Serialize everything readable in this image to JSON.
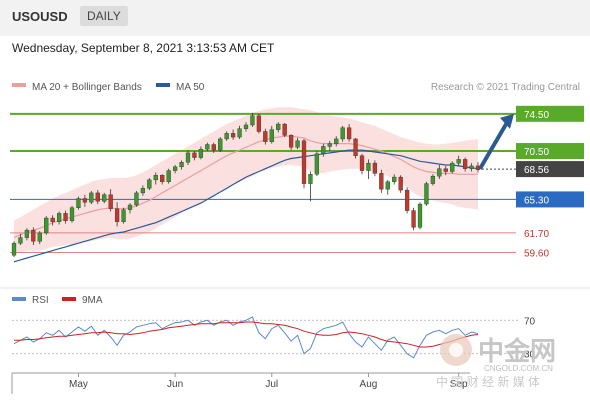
{
  "symbol": "USOUSD",
  "timeframe": "DAILY",
  "datetime": "Wednesday, September 8, 2021 3:13:53 AM CET",
  "credit": "Research © 2021 Trading Central",
  "legend": {
    "ma20_label": "MA 20 + Bollinger Bands",
    "ma50_label": "MA 50",
    "rsi_label": "RSI",
    "rsi_ma_label": "9MA"
  },
  "colors": {
    "candle_up": "#3b9a2b",
    "candle_down": "#c0392b",
    "ma20": "#e8a0a0",
    "bollinger_fill": "#f9d6d6",
    "ma50": "#2a5a9a",
    "resistance": "#5aaa2a",
    "support_blue": "#2a6ac0",
    "support_red": "#e08080",
    "current_price": "#444444",
    "arrow": "#2a5a90",
    "rsi": "#5a8ad0",
    "rsi_ma": "#cc2222"
  },
  "watermark": {
    "brand": "中金网",
    "domain": "CNGOLD.COM.CN",
    "sub": "中 国 财 经 新 媒 体"
  },
  "chart_data": [
    {
      "type": "candlestick",
      "title": "USOUSD",
      "xlabel": "",
      "ylabel": "",
      "ylim": [
        57.5,
        76.2
      ],
      "x_ticks": [
        "May",
        "Jun",
        "Jul",
        "Aug",
        "Sep"
      ],
      "grid": false,
      "levels": [
        {
          "value": 74.5,
          "label": "74.50",
          "kind": "resistance"
        },
        {
          "value": 70.5,
          "label": "70.50",
          "kind": "resistance"
        },
        {
          "value": 68.56,
          "label": "68.56",
          "kind": "current"
        },
        {
          "value": 65.3,
          "label": "65.30",
          "kind": "support"
        },
        {
          "value": 61.7,
          "label": "61.70",
          "kind": "support-minor"
        },
        {
          "value": 59.6,
          "label": "59.60",
          "kind": "support-minor"
        }
      ],
      "projection": {
        "from": 68.6,
        "to": 74.5
      },
      "candles": [
        [
          59.3,
          60.8,
          59.1,
          60.6
        ],
        [
          60.6,
          61.6,
          60.4,
          61.2
        ],
        [
          61.2,
          62.2,
          60.9,
          62.0
        ],
        [
          62.0,
          62.3,
          60.4,
          60.8
        ],
        [
          60.8,
          61.9,
          60.5,
          61.7
        ],
        [
          61.7,
          63.5,
          61.5,
          63.3
        ],
        [
          63.3,
          63.6,
          62.5,
          62.9
        ],
        [
          62.9,
          64.0,
          62.6,
          63.8
        ],
        [
          63.8,
          64.1,
          62.7,
          63.0
        ],
        [
          63.0,
          64.6,
          62.8,
          64.4
        ],
        [
          64.4,
          65.6,
          64.2,
          65.4
        ],
        [
          65.4,
          65.8,
          64.5,
          65.0
        ],
        [
          65.0,
          66.2,
          64.8,
          66.0
        ],
        [
          66.0,
          66.3,
          64.8,
          65.1
        ],
        [
          65.1,
          66.0,
          64.9,
          65.8
        ],
        [
          65.8,
          66.4,
          64.0,
          64.3
        ],
        [
          64.3,
          65.0,
          62.4,
          62.9
        ],
        [
          62.9,
          64.4,
          62.7,
          64.2
        ],
        [
          64.2,
          64.9,
          63.8,
          64.7
        ],
        [
          64.7,
          66.2,
          64.5,
          66.0
        ],
        [
          66.0,
          66.8,
          65.7,
          66.5
        ],
        [
          66.5,
          67.6,
          66.3,
          67.4
        ],
        [
          67.4,
          68.2,
          66.9,
          67.9
        ],
        [
          67.9,
          68.0,
          66.9,
          67.2
        ],
        [
          67.2,
          68.6,
          67.0,
          68.4
        ],
        [
          68.4,
          69.0,
          68.1,
          68.8
        ],
        [
          68.8,
          69.5,
          68.5,
          69.3
        ],
        [
          69.3,
          70.6,
          69.0,
          70.3
        ],
        [
          70.3,
          70.5,
          69.5,
          69.8
        ],
        [
          69.8,
          71.0,
          69.6,
          70.7
        ],
        [
          70.7,
          71.4,
          70.5,
          71.2
        ],
        [
          71.2,
          71.4,
          70.3,
          70.6
        ],
        [
          70.6,
          72.0,
          70.4,
          71.8
        ],
        [
          71.8,
          72.6,
          71.6,
          72.4
        ],
        [
          72.4,
          72.8,
          71.7,
          72.0
        ],
        [
          72.0,
          73.2,
          71.8,
          72.9
        ],
        [
          72.9,
          73.6,
          72.6,
          73.3
        ],
        [
          73.3,
          74.6,
          73.1,
          74.3
        ],
        [
          74.3,
          74.5,
          72.4,
          72.6
        ],
        [
          72.6,
          72.9,
          71.2,
          71.5
        ],
        [
          71.5,
          73.2,
          71.3,
          72.8
        ],
        [
          72.8,
          73.6,
          72.5,
          73.4
        ],
        [
          73.4,
          73.5,
          72.0,
          72.2
        ],
        [
          72.2,
          72.3,
          70.6,
          70.9
        ],
        [
          70.9,
          71.9,
          70.7,
          71.6
        ],
        [
          71.6,
          71.8,
          66.5,
          67.0
        ],
        [
          67.0,
          68.3,
          65.1,
          68.0
        ],
        [
          68.0,
          70.5,
          67.8,
          70.2
        ],
        [
          70.2,
          71.3,
          69.9,
          71.0
        ],
        [
          71.0,
          71.6,
          70.5,
          71.3
        ],
        [
          71.3,
          72.1,
          71.0,
          71.8
        ],
        [
          71.8,
          73.2,
          71.5,
          73.0
        ],
        [
          73.0,
          73.4,
          71.5,
          71.8
        ],
        [
          71.8,
          71.9,
          69.7,
          70.0
        ],
        [
          70.0,
          70.2,
          68.0,
          68.4
        ],
        [
          68.4,
          69.6,
          67.5,
          69.2
        ],
        [
          69.2,
          69.5,
          67.8,
          68.1
        ],
        [
          68.1,
          68.5,
          66.0,
          66.4
        ],
        [
          66.4,
          67.4,
          65.8,
          67.2
        ],
        [
          67.2,
          68.0,
          66.9,
          67.7
        ],
        [
          67.7,
          67.9,
          66.0,
          66.3
        ],
        [
          66.3,
          66.6,
          63.8,
          64.1
        ],
        [
          64.1,
          64.4,
          62.0,
          62.3
        ],
        [
          62.3,
          65.0,
          62.1,
          64.8
        ],
        [
          64.8,
          67.2,
          64.6,
          67.0
        ],
        [
          67.0,
          68.0,
          66.8,
          67.8
        ],
        [
          67.8,
          69.0,
          67.5,
          68.6
        ],
        [
          68.6,
          68.9,
          67.9,
          68.3
        ],
        [
          68.3,
          69.4,
          68.1,
          69.2
        ],
        [
          69.2,
          70.0,
          68.9,
          69.6
        ],
        [
          69.6,
          69.8,
          68.3,
          68.6
        ],
        [
          68.6,
          69.2,
          68.3,
          68.9
        ],
        [
          68.9,
          69.3,
          68.2,
          68.5
        ]
      ],
      "ma20": [
        61.2,
        61.5,
        61.8,
        62.0,
        62.2,
        62.5,
        62.8,
        63.0,
        63.2,
        63.4,
        63.6,
        63.8,
        64.0,
        64.2,
        64.3,
        64.4,
        64.3,
        64.3,
        64.4,
        64.6,
        64.9,
        65.2,
        65.6,
        66.0,
        66.4,
        66.8,
        67.2,
        67.6,
        68.0,
        68.4,
        68.8,
        69.2,
        69.6,
        70.0,
        70.3,
        70.6,
        70.9,
        71.2,
        71.5,
        71.7,
        71.9,
        72.0,
        72.1,
        72.1,
        72.0,
        71.9,
        71.6,
        71.4,
        71.3,
        71.3,
        71.3,
        71.3,
        71.3,
        71.2,
        71.1,
        70.9,
        70.7,
        70.5,
        70.2,
        69.9,
        69.6,
        69.2,
        68.8,
        68.5,
        68.3,
        68.2,
        68.1,
        68.1,
        68.1,
        68.0,
        68.0,
        68.0,
        68.0
      ],
      "ma50": [
        58.6,
        58.8,
        59.0,
        59.2,
        59.4,
        59.6,
        59.8,
        60.0,
        60.2,
        60.4,
        60.6,
        60.8,
        61.0,
        61.2,
        61.4,
        61.6,
        61.7,
        61.8,
        62.0,
        62.2,
        62.4,
        62.6,
        62.8,
        63.1,
        63.4,
        63.7,
        64.0,
        64.3,
        64.6,
        64.9,
        65.3,
        65.7,
        66.1,
        66.5,
        66.9,
        67.3,
        67.7,
        68.0,
        68.3,
        68.6,
        68.9,
        69.2,
        69.5,
        69.7,
        69.8,
        69.9,
        70.0,
        70.1,
        70.2,
        70.3,
        70.4,
        70.5,
        70.6,
        70.6,
        70.6,
        70.5,
        70.4,
        70.3,
        70.2,
        70.1,
        70.0,
        69.8,
        69.6,
        69.4,
        69.3,
        69.2,
        69.1,
        69.0,
        69.0,
        68.9,
        68.8,
        68.7,
        68.6
      ],
      "bb_upper": [
        63.0,
        63.4,
        63.8,
        64.2,
        64.6,
        65.0,
        65.4,
        65.7,
        66.0,
        66.3,
        66.6,
        66.9,
        67.2,
        67.4,
        67.5,
        67.6,
        67.6,
        67.6,
        67.7,
        67.9,
        68.2,
        68.6,
        69.0,
        69.4,
        69.8,
        70.2,
        70.6,
        71.0,
        71.4,
        71.8,
        72.2,
        72.6,
        73.0,
        73.4,
        73.7,
        74.0,
        74.3,
        74.6,
        74.8,
        75.0,
        75.1,
        75.2,
        75.2,
        75.2,
        75.1,
        75.0,
        74.9,
        74.7,
        74.5,
        74.3,
        74.2,
        74.1,
        74.0,
        73.8,
        73.6,
        73.4,
        73.2,
        72.9,
        72.6,
        72.3,
        72.0,
        71.8,
        71.6,
        71.4,
        71.3,
        71.2,
        71.2,
        71.3,
        71.4,
        71.5,
        71.6,
        71.7,
        71.8
      ],
      "bb_lower": [
        59.4,
        59.6,
        59.8,
        59.8,
        59.8,
        60.0,
        60.2,
        60.3,
        60.4,
        60.5,
        60.6,
        60.7,
        60.8,
        61.0,
        61.1,
        61.2,
        61.0,
        61.0,
        61.1,
        61.3,
        61.6,
        61.8,
        62.2,
        62.6,
        63.0,
        63.4,
        63.8,
        64.2,
        64.6,
        65.0,
        65.4,
        65.8,
        66.2,
        66.6,
        66.9,
        67.2,
        67.5,
        67.8,
        68.2,
        68.4,
        68.7,
        68.8,
        69.0,
        69.0,
        68.9,
        68.8,
        68.3,
        68.1,
        68.1,
        68.3,
        68.4,
        68.5,
        68.6,
        68.6,
        68.6,
        68.4,
        68.2,
        68.1,
        67.8,
        67.5,
        67.2,
        66.6,
        66.0,
        65.6,
        65.3,
        65.2,
        65.0,
        64.9,
        64.8,
        64.5,
        64.4,
        64.3,
        64.2
      ]
    },
    {
      "type": "line",
      "title": "",
      "xlabel": "",
      "ylabel": "",
      "ylim": [
        20,
        80
      ],
      "y_ticks": [
        70,
        30
      ],
      "series": [
        {
          "name": "RSI",
          "values": [
            42,
            46,
            50,
            44,
            48,
            55,
            52,
            58,
            50,
            56,
            62,
            57,
            63,
            52,
            58,
            50,
            40,
            52,
            56,
            62,
            64,
            66,
            67,
            60,
            64,
            67,
            68,
            70,
            64,
            68,
            70,
            64,
            68,
            70,
            64,
            68,
            70,
            74,
            55,
            48,
            60,
            64,
            55,
            45,
            52,
            30,
            36,
            55,
            60,
            62,
            64,
            68,
            54,
            44,
            38,
            50,
            42,
            34,
            46,
            50,
            40,
            30,
            25,
            40,
            52,
            56,
            58,
            54,
            58,
            60,
            52,
            56,
            54
          ]
        },
        {
          "name": "9MA",
          "values": [
            46,
            46,
            47,
            47,
            48,
            49,
            50,
            51,
            51,
            52,
            53,
            54,
            55,
            55,
            56,
            55,
            54,
            54,
            53,
            54,
            55,
            57,
            58,
            59,
            61,
            62,
            63,
            64,
            65,
            66,
            66,
            66,
            67,
            67,
            67,
            67,
            68,
            68,
            67,
            66,
            66,
            65,
            64,
            62,
            60,
            57,
            55,
            53,
            52,
            52,
            53,
            55,
            56,
            55,
            54,
            52,
            50,
            47,
            45,
            44,
            43,
            42,
            40,
            38,
            38,
            39,
            41,
            43,
            45,
            48,
            50,
            52,
            53
          ]
        }
      ]
    }
  ]
}
